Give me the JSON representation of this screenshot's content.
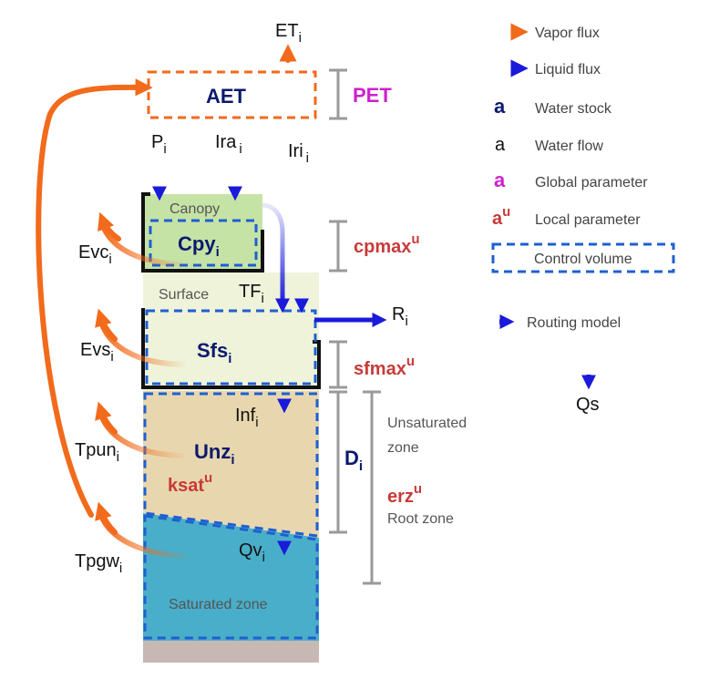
{
  "aet": {
    "label": "AET"
  },
  "pet": {
    "label": "PET"
  },
  "et": {
    "base": "ET",
    "sub": "i"
  },
  "precip": {
    "base": "P",
    "sub": "i"
  },
  "ira": {
    "base": "Ira",
    "sub": "i"
  },
  "iri": {
    "base": "Iri",
    "sub": "i"
  },
  "canopy": {
    "label": "Canopy"
  },
  "cpy": {
    "base": "Cpy",
    "sub": "i"
  },
  "cpmax": {
    "base": "cpmax",
    "sup": "u"
  },
  "surface": {
    "label": "Surface"
  },
  "tf": {
    "base": "TF",
    "sub": "i"
  },
  "sfs": {
    "base": "Sfs",
    "sub": "i"
  },
  "sfmax": {
    "base": "sfmax",
    "sup": "u"
  },
  "runoff": {
    "base": "R",
    "sub": "i"
  },
  "routing": {
    "label": "Routing model"
  },
  "qs": {
    "label": "Qs"
  },
  "inf": {
    "base": "Inf",
    "sub": "i"
  },
  "unz": {
    "base": "Unz",
    "sub": "i"
  },
  "ksat": {
    "base": "ksat",
    "sup": "u"
  },
  "depth": {
    "base": "D",
    "sub": "i"
  },
  "unsat_zone": {
    "line1": "Unsaturated",
    "line2": "zone"
  },
  "erz": {
    "base": "erz",
    "sup": "u"
  },
  "root_zone": {
    "label": "Root zone"
  },
  "qv": {
    "base": "Qv",
    "sub": "i"
  },
  "sat_zone": {
    "label": "Saturated zone"
  },
  "evc": {
    "base": "Evc",
    "sub": "i"
  },
  "evs": {
    "base": "Evs",
    "sub": "i"
  },
  "tpun": {
    "base": "Tpun",
    "sub": "i"
  },
  "tpgw": {
    "base": "Tpgw",
    "sub": "i"
  },
  "legend": {
    "vapor": "Vapor flux",
    "liquid": "Liquid flux",
    "stock_sample": "a",
    "stock": "Water stock",
    "flow_sample": "a",
    "flow": "Water flow",
    "global_sample": "a",
    "global": "Global parameter",
    "local_sample": "a",
    "local_sup": "u",
    "local": "Local parameter",
    "control": "Control volume"
  },
  "colors": {
    "vapor": "#f26a1b",
    "liquid": "#1a1adb",
    "stock": "#0b1a6e",
    "global": "#cc22cc",
    "local": "#c83a3a",
    "control": "#1f5fd1",
    "canopy_fill": "#c6e3a6",
    "surface_fill": "#eef3da",
    "unsat_fill": "#e8d7ae",
    "sat_fill": "#49aec9",
    "bedrock": "#c8b8b4",
    "bracket": "#9a9a9a"
  }
}
